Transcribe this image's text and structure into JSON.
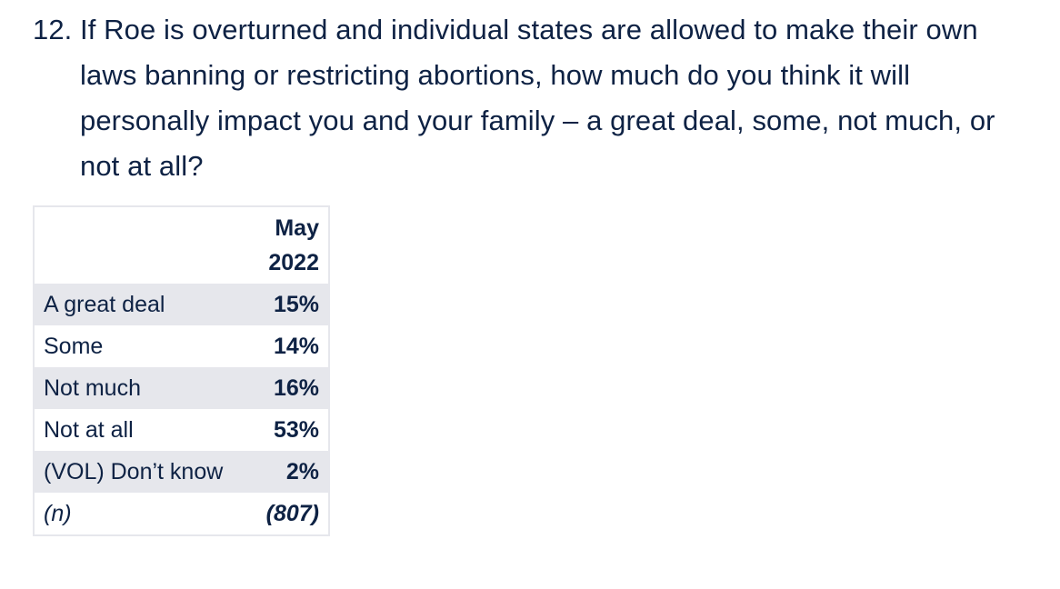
{
  "question": {
    "number": "12.",
    "text": "If Roe is overturned and individual states are allowed to make their own laws banning or restricting abortions, how much do you think it will personally impact you and your family – a great deal, some, not much, or not at all?"
  },
  "table": {
    "column_header_line1": "May",
    "column_header_line2": "2022",
    "rows": [
      {
        "label": "A great deal",
        "value": "15%"
      },
      {
        "label": "Some",
        "value": "14%"
      },
      {
        "label": "Not much",
        "value": "16%"
      },
      {
        "label": "Not at all",
        "value": "53%"
      },
      {
        "label": "(VOL) Don’t know",
        "value": "2%"
      },
      {
        "label": "(n)",
        "value": "(807)"
      }
    ]
  },
  "colors": {
    "text": "#0e2244",
    "row_shade": "#e6e7ec",
    "border": "#e6e7ec"
  }
}
